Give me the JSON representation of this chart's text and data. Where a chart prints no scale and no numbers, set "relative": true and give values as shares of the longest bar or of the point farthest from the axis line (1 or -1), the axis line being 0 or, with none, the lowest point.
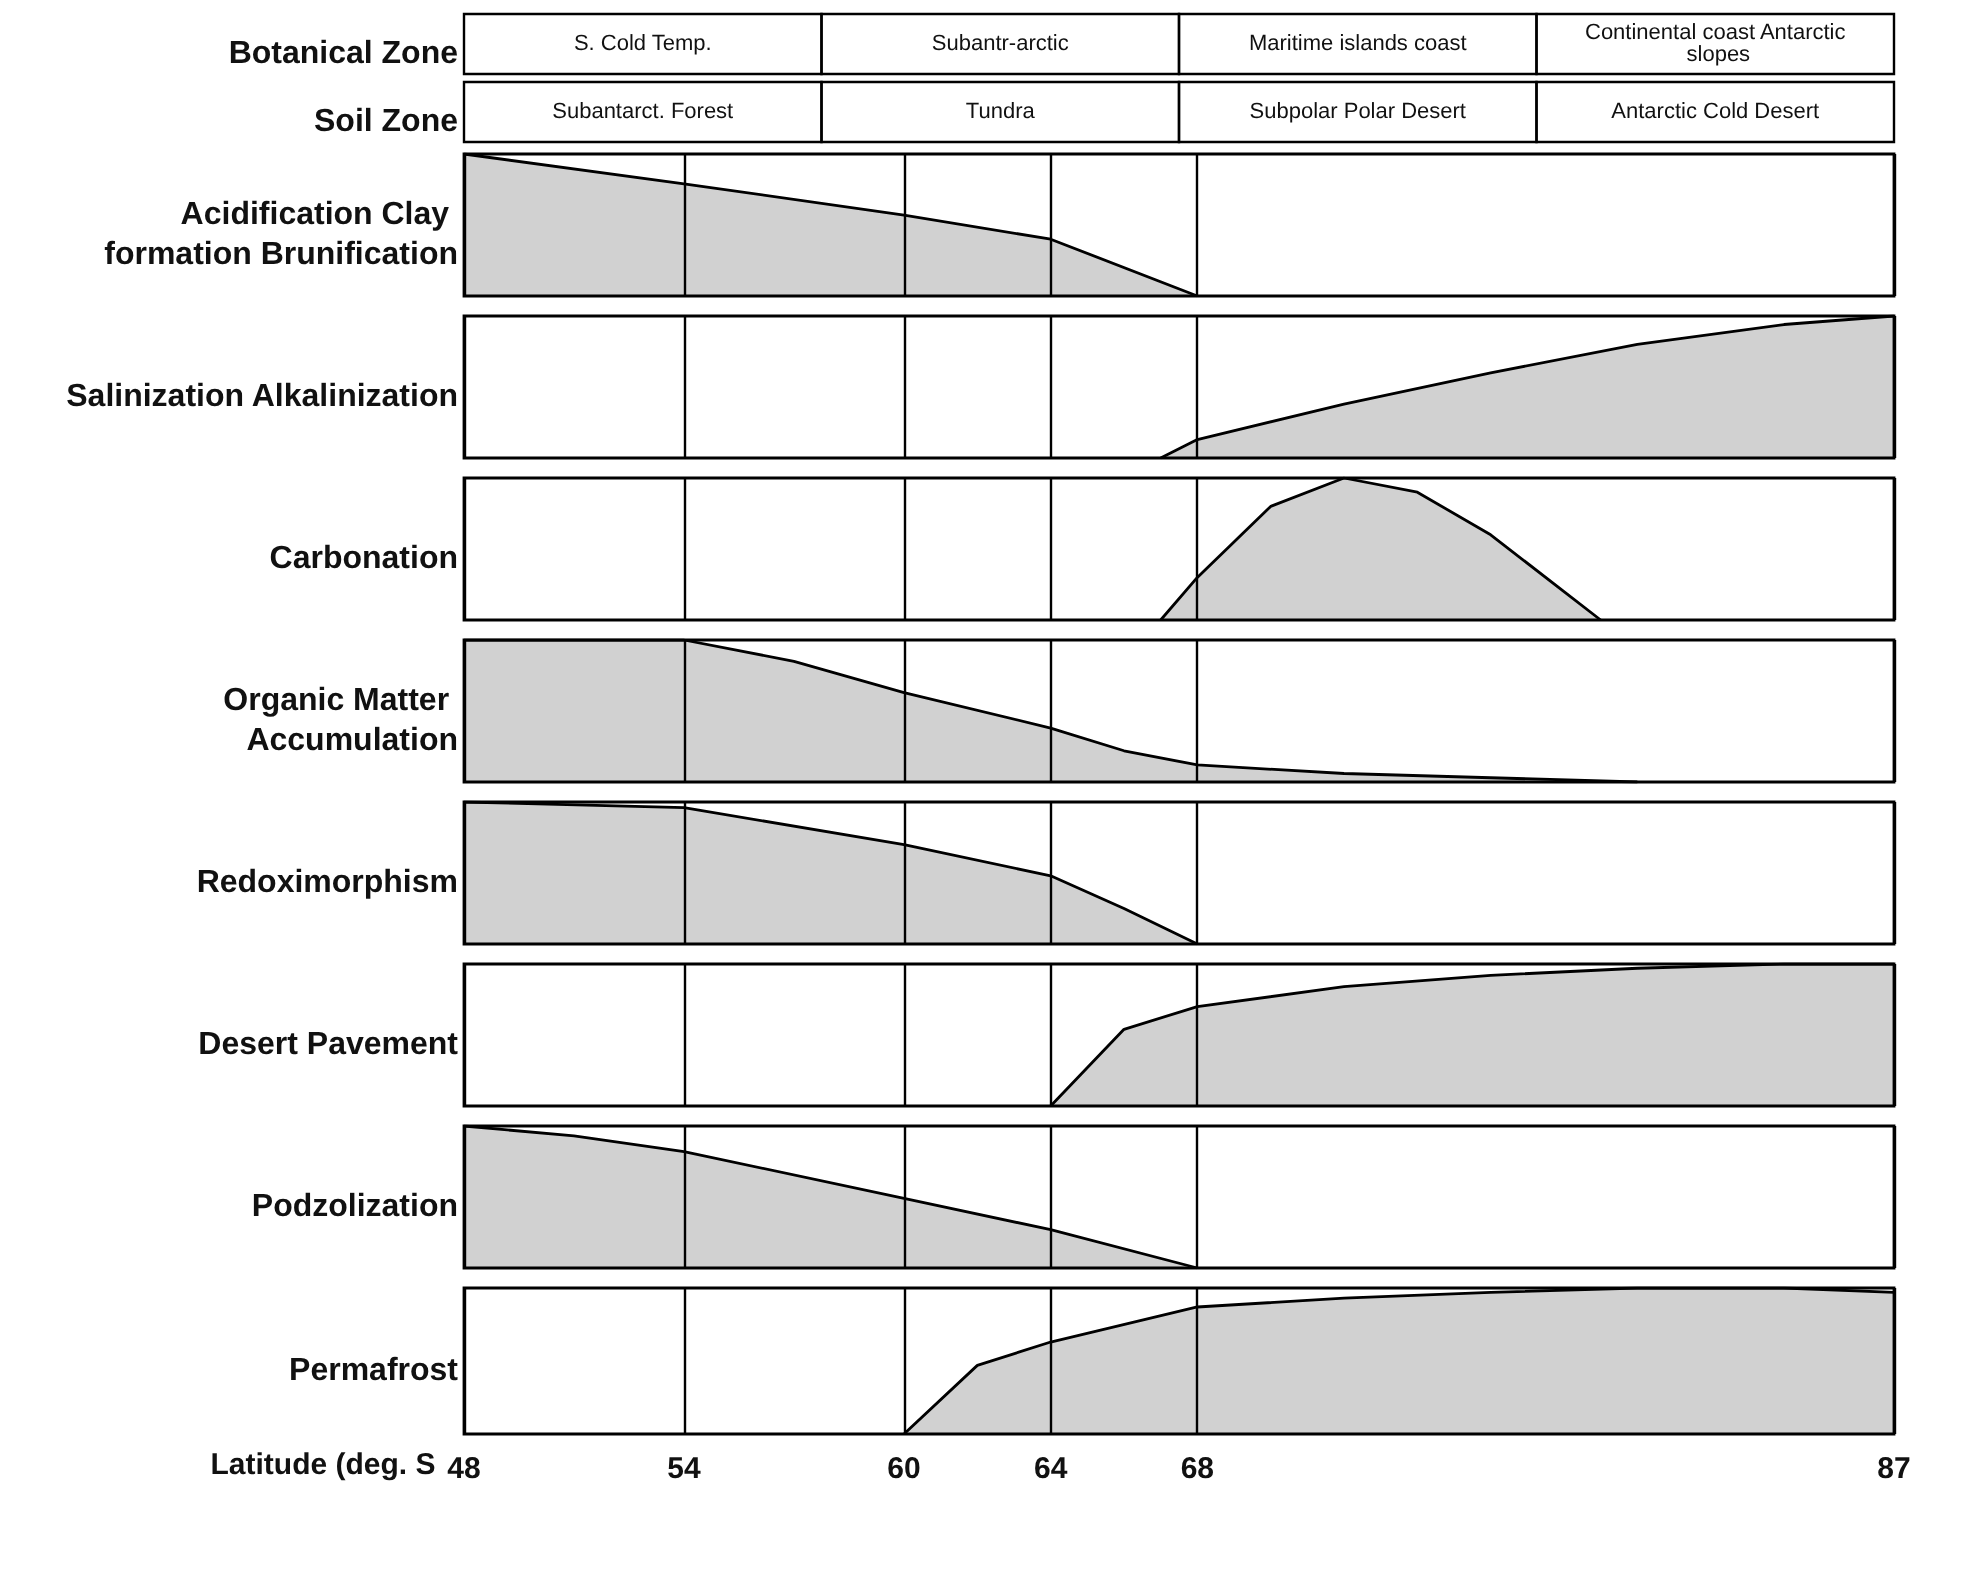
{
  "chart_data": [
    {
      "type": "other",
      "title": "Botanical Zone",
      "categories": [
        "S. Cold Temp.",
        "Subantr-arctic",
        "Maritime islands coast",
        "Continental coast Antarctic slopes"
      ]
    },
    {
      "type": "other",
      "title": "Soil Zone",
      "categories": [
        "Subantarct. Forest",
        "Tundra",
        "Subpolar Polar Desert",
        "Antarctic Cold Desert"
      ]
    },
    {
      "type": "area",
      "title": "Acidification Clay formation Brunification",
      "relative": true,
      "xlim": [
        48,
        87
      ],
      "xticks": [
        48,
        54,
        60,
        64,
        68,
        87
      ],
      "grid": "x",
      "tick_labels": false,
      "series": [
        {
          "color": "#000000",
          "x": [
            48,
            54,
            60,
            64,
            68
          ],
          "values": [
            1,
            0.79,
            0.57,
            0.4,
            0
          ]
        }
      ]
    },
    {
      "type": "area",
      "title": "Salinization Alkalinization",
      "relative": true,
      "xlim": [
        48,
        87
      ],
      "xticks": [
        48,
        54,
        60,
        64,
        68,
        87
      ],
      "grid": "x",
      "tick_labels": false,
      "series": [
        {
          "color": "#000000",
          "x": [
            67,
            68,
            72,
            76,
            80,
            84,
            87
          ],
          "values": [
            0,
            0.13,
            0.38,
            0.6,
            0.8,
            0.94,
            1
          ]
        }
      ]
    },
    {
      "type": "area",
      "title": "Carbonation",
      "relative": true,
      "xlim": [
        48,
        87
      ],
      "xticks": [
        48,
        54,
        60,
        64,
        68,
        87
      ],
      "grid": "x",
      "tick_labels": false,
      "series": [
        {
          "color": "#000000",
          "x": [
            67,
            68,
            70,
            72,
            74,
            76,
            78,
            79
          ],
          "values": [
            0,
            0.3,
            0.8,
            1,
            0.9,
            0.6,
            0.2,
            0
          ]
        }
      ]
    },
    {
      "type": "area",
      "title": "Organic Matter Accumulation",
      "relative": true,
      "xlim": [
        48,
        87
      ],
      "xticks": [
        48,
        54,
        60,
        64,
        68,
        87
      ],
      "grid": "x",
      "tick_labels": false,
      "series": [
        {
          "color": "#000000",
          "x": [
            48,
            54,
            57,
            60,
            64,
            66,
            68,
            72,
            76,
            80
          ],
          "values": [
            1,
            1,
            0.85,
            0.63,
            0.38,
            0.22,
            0.12,
            0.06,
            0.03,
            0
          ]
        }
      ]
    },
    {
      "type": "area",
      "title": "Redoximorphism",
      "relative": true,
      "xlim": [
        48,
        87
      ],
      "xticks": [
        48,
        54,
        60,
        64,
        68,
        87
      ],
      "grid": "x",
      "tick_labels": false,
      "series": [
        {
          "color": "#000000",
          "x": [
            48,
            54,
            60,
            64,
            66,
            68
          ],
          "values": [
            1,
            0.96,
            0.7,
            0.48,
            0.25,
            0
          ]
        }
      ]
    },
    {
      "type": "area",
      "title": "Desert Pavement",
      "relative": true,
      "xlim": [
        48,
        87
      ],
      "xticks": [
        48,
        54,
        60,
        64,
        68,
        87
      ],
      "grid": "x",
      "tick_labels": false,
      "series": [
        {
          "color": "#000000",
          "x": [
            64,
            66,
            68,
            72,
            76,
            80,
            84,
            87
          ],
          "values": [
            0,
            0.54,
            0.7,
            0.84,
            0.92,
            0.97,
            1,
            1
          ]
        }
      ]
    },
    {
      "type": "area",
      "title": "Podzolization",
      "relative": true,
      "xlim": [
        48,
        87
      ],
      "xticks": [
        48,
        54,
        60,
        64,
        68,
        87
      ],
      "grid": "x",
      "tick_labels": false,
      "series": [
        {
          "color": "#000000",
          "x": [
            48,
            51,
            54,
            60,
            64,
            68
          ],
          "values": [
            1,
            0.93,
            0.82,
            0.49,
            0.27,
            0
          ]
        }
      ]
    },
    {
      "type": "area",
      "title": "Permafrost",
      "xlabel": "Latitude (deg. S",
      "relative": true,
      "xlim": [
        48,
        87
      ],
      "xticks": [
        48,
        54,
        60,
        64,
        68,
        87
      ],
      "grid": "x",
      "tick_labels": "x",
      "series": [
        {
          "color": "#000000",
          "x": [
            60,
            62,
            64,
            68,
            72,
            76,
            80,
            84,
            87
          ],
          "values": [
            0,
            0.47,
            0.63,
            0.87,
            0.93,
            0.97,
            1,
            1,
            0.97
          ]
        }
      ]
    }
  ]
}
